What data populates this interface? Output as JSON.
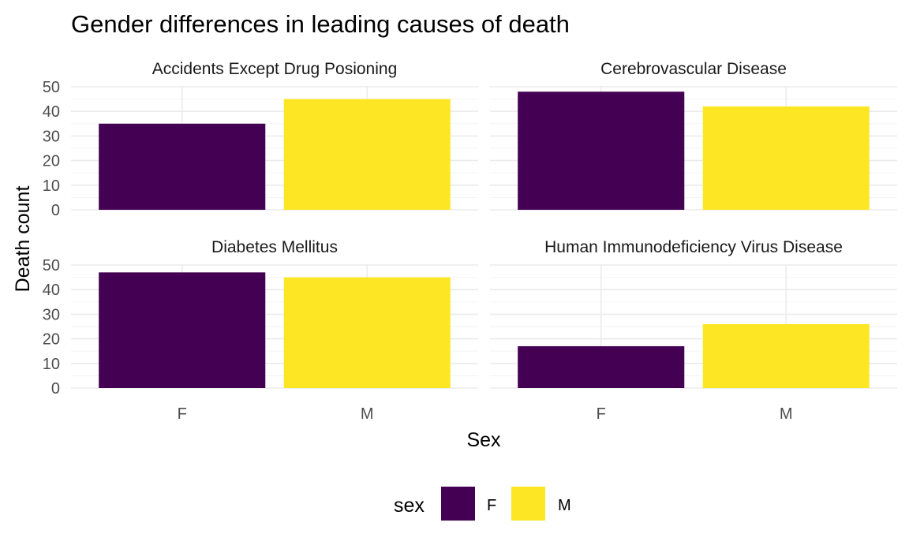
{
  "colors": {
    "F": "#440154",
    "M": "#FDE725"
  },
  "chart_data": {
    "type": "bar",
    "title": "Gender differences in leading causes of death",
    "xlabel": "Sex",
    "ylabel": "Death count",
    "categories": [
      "F",
      "M"
    ],
    "ylim": [
      0,
      50
    ],
    "yticks": [
      "0",
      "10",
      "20",
      "30",
      "40",
      "50"
    ],
    "panels": [
      {
        "name": "Accidents Except Drug Posioning",
        "values": [
          35,
          45
        ]
      },
      {
        "name": "Cerebrovascular Disease",
        "values": [
          48,
          42
        ]
      },
      {
        "name": "Diabetes Mellitus",
        "values": [
          47,
          45
        ]
      },
      {
        "name": "Human Immunodeficiency Virus Disease",
        "values": [
          17,
          26
        ]
      }
    ],
    "legend": {
      "title": "sex",
      "entries": [
        "F",
        "M"
      ],
      "position": "bottom"
    }
  }
}
